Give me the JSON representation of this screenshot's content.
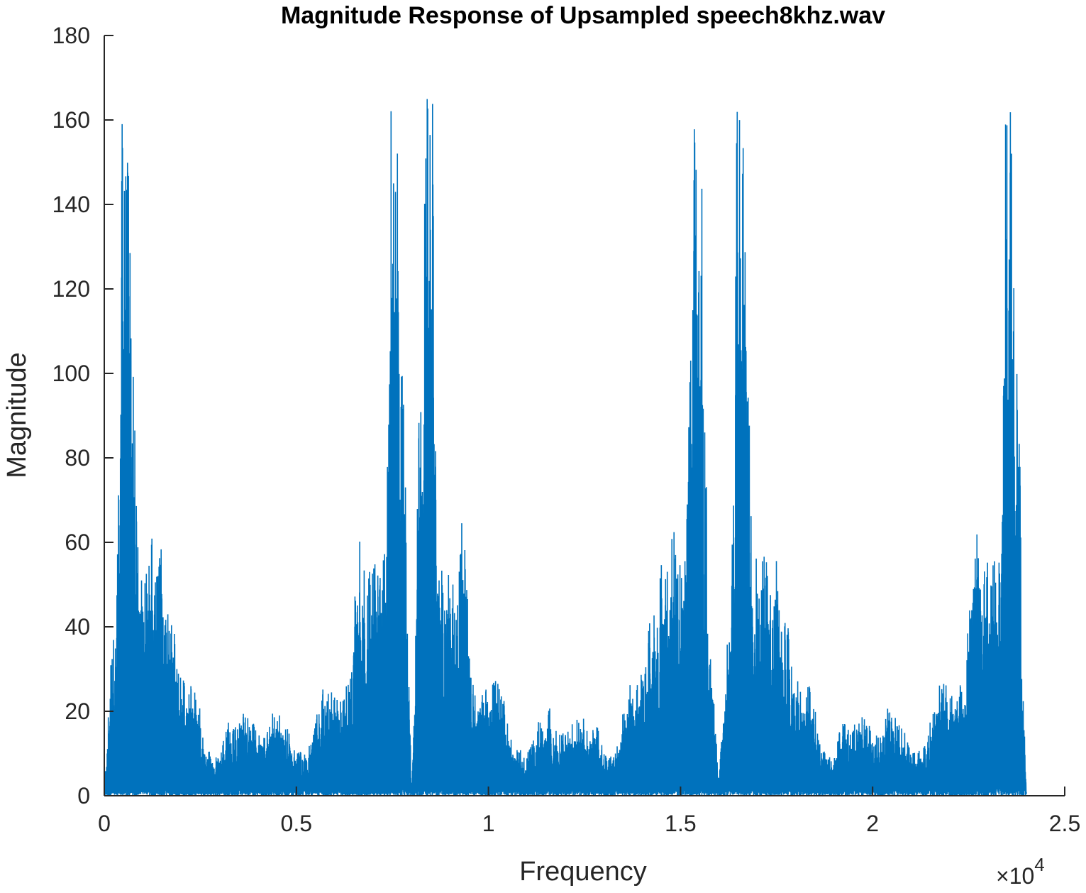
{
  "chart_data": {
    "type": "line",
    "title": "Magnitude Response of Upsampled speech8khz.wav",
    "xlabel": "Frequency",
    "ylabel": "Magnitude",
    "xlim": [
      0,
      25000
    ],
    "ylim": [
      0,
      180
    ],
    "x_exponent_label": "×10",
    "x_exponent_power": "4",
    "xticks": [
      0,
      5000,
      10000,
      15000,
      20000,
      25000
    ],
    "xtick_labels": [
      "0",
      "0.5",
      "1",
      "1.5",
      "2",
      "2.5"
    ],
    "yticks": [
      0,
      20,
      40,
      60,
      80,
      100,
      120,
      140,
      160,
      180
    ],
    "ytick_labels": [
      "0",
      "20",
      "40",
      "60",
      "80",
      "100",
      "120",
      "140",
      "160",
      "180"
    ],
    "grid": false,
    "series": [
      {
        "color": "#0072bd",
        "envelope": {
          "x": [
            0,
            100,
            200,
            300,
            350,
            400,
            450,
            500,
            550,
            600,
            650,
            700,
            750,
            800,
            900,
            1000,
            1100,
            1200,
            1300,
            1400,
            1500,
            1600,
            1700,
            1800,
            1900,
            2000,
            2100,
            2200,
            2300,
            2400,
            2500,
            2600,
            2700,
            2800,
            2900,
            3000,
            3200,
            3400,
            3600,
            3800,
            4000,
            4200,
            4400,
            4600,
            4800,
            5000,
            5200,
            5400,
            5600,
            5800,
            6000,
            6200,
            6400,
            6600,
            6700,
            6800,
            6900,
            7000,
            7100,
            7200,
            7300,
            7400,
            7450,
            7500,
            7550,
            7600,
            7650,
            7700,
            7750,
            7800,
            7900,
            7950,
            8000
          ],
          "y": [
            3,
            20,
            36,
            45,
            103,
            75,
            164,
            163,
            168,
            168,
            169,
            110,
            105,
            85,
            59,
            56,
            53,
            70,
            50,
            57,
            60,
            44,
            43,
            44,
            31,
            30,
            27,
            25,
            28,
            24,
            21,
            13,
            11,
            10,
            9,
            10,
            18,
            16,
            20,
            18,
            16,
            14,
            21,
            19,
            16,
            10,
            11,
            13,
            23,
            28,
            25,
            26,
            27,
            60,
            67,
            50,
            57,
            55,
            55,
            56,
            59,
            90,
            164,
            169,
            168,
            165,
            163,
            105,
            100,
            101,
            36,
            20,
            0
          ]
        }
      }
    ]
  }
}
